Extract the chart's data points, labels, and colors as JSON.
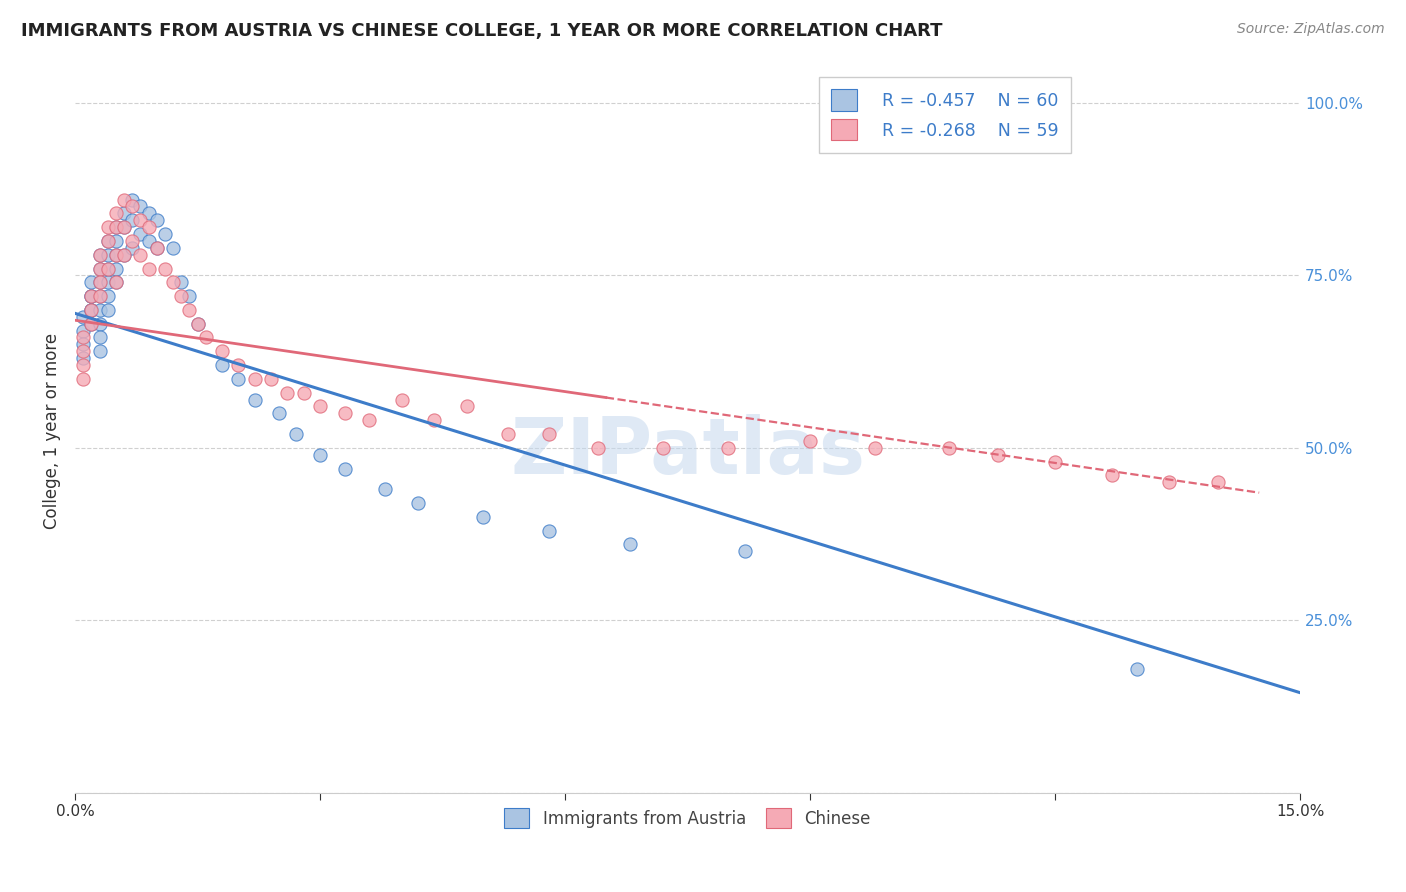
{
  "title": "IMMIGRANTS FROM AUSTRIA VS CHINESE COLLEGE, 1 YEAR OR MORE CORRELATION CHART",
  "source": "Source: ZipAtlas.com",
  "ylabel_label": "College, 1 year or more",
  "x_min": 0.0,
  "x_max": 0.15,
  "y_min": 0.0,
  "y_max": 1.05,
  "x_ticks": [
    0.0,
    0.03,
    0.06,
    0.09,
    0.12,
    0.15
  ],
  "x_tick_labels": [
    "0.0%",
    "",
    "",
    "",
    "",
    "15.0%"
  ],
  "y_ticks_right": [
    0.0,
    0.25,
    0.5,
    0.75,
    1.0
  ],
  "y_tick_labels_right": [
    "",
    "25.0%",
    "50.0%",
    "75.0%",
    "100.0%"
  ],
  "austria_color": "#aac4e2",
  "chinese_color": "#f5aab5",
  "austria_line_color": "#3d7cc9",
  "chinese_line_color": "#e06878",
  "legend_R_austria": "R = -0.457",
  "legend_N_austria": "N = 60",
  "legend_R_chinese": "R = -0.268",
  "legend_N_chinese": "N = 59",
  "legend_label_austria": "Immigrants from Austria",
  "legend_label_chinese": "Chinese",
  "watermark": "ZIPatlas",
  "austria_line_x0": 0.0,
  "austria_line_y0": 0.695,
  "austria_line_x1": 0.15,
  "austria_line_y1": 0.145,
  "chinese_line_x0": 0.0,
  "chinese_line_y0": 0.685,
  "chinese_line_solid_x1": 0.065,
  "chinese_line_x1": 0.145,
  "chinese_line_y1": 0.435,
  "austria_x": [
    0.001,
    0.001,
    0.001,
    0.001,
    0.002,
    0.002,
    0.002,
    0.002,
    0.002,
    0.002,
    0.003,
    0.003,
    0.003,
    0.003,
    0.003,
    0.003,
    0.003,
    0.003,
    0.004,
    0.004,
    0.004,
    0.004,
    0.004,
    0.004,
    0.005,
    0.005,
    0.005,
    0.005,
    0.005,
    0.006,
    0.006,
    0.006,
    0.007,
    0.007,
    0.007,
    0.008,
    0.008,
    0.009,
    0.009,
    0.01,
    0.01,
    0.011,
    0.012,
    0.013,
    0.014,
    0.015,
    0.018,
    0.02,
    0.022,
    0.025,
    0.027,
    0.03,
    0.033,
    0.038,
    0.042,
    0.05,
    0.058,
    0.068,
    0.082,
    0.13
  ],
  "austria_y": [
    0.69,
    0.67,
    0.65,
    0.63,
    0.74,
    0.72,
    0.7,
    0.68,
    0.72,
    0.7,
    0.78,
    0.76,
    0.74,
    0.72,
    0.7,
    0.68,
    0.66,
    0.64,
    0.8,
    0.78,
    0.76,
    0.74,
    0.72,
    0.7,
    0.82,
    0.8,
    0.78,
    0.76,
    0.74,
    0.84,
    0.82,
    0.78,
    0.86,
    0.83,
    0.79,
    0.85,
    0.81,
    0.84,
    0.8,
    0.83,
    0.79,
    0.81,
    0.79,
    0.74,
    0.72,
    0.68,
    0.62,
    0.6,
    0.57,
    0.55,
    0.52,
    0.49,
    0.47,
    0.44,
    0.42,
    0.4,
    0.38,
    0.36,
    0.35,
    0.18
  ],
  "chinese_x": [
    0.001,
    0.001,
    0.001,
    0.001,
    0.002,
    0.002,
    0.002,
    0.003,
    0.003,
    0.003,
    0.003,
    0.004,
    0.004,
    0.004,
    0.005,
    0.005,
    0.005,
    0.005,
    0.006,
    0.006,
    0.006,
    0.007,
    0.007,
    0.008,
    0.008,
    0.009,
    0.009,
    0.01,
    0.011,
    0.012,
    0.013,
    0.014,
    0.015,
    0.016,
    0.018,
    0.02,
    0.022,
    0.024,
    0.026,
    0.028,
    0.03,
    0.033,
    0.036,
    0.04,
    0.044,
    0.048,
    0.053,
    0.058,
    0.064,
    0.072,
    0.08,
    0.09,
    0.098,
    0.107,
    0.113,
    0.12,
    0.127,
    0.134,
    0.14
  ],
  "chinese_y": [
    0.66,
    0.64,
    0.62,
    0.6,
    0.72,
    0.7,
    0.68,
    0.78,
    0.76,
    0.74,
    0.72,
    0.82,
    0.8,
    0.76,
    0.84,
    0.82,
    0.78,
    0.74,
    0.86,
    0.82,
    0.78,
    0.85,
    0.8,
    0.83,
    0.78,
    0.82,
    0.76,
    0.79,
    0.76,
    0.74,
    0.72,
    0.7,
    0.68,
    0.66,
    0.64,
    0.62,
    0.6,
    0.6,
    0.58,
    0.58,
    0.56,
    0.55,
    0.54,
    0.57,
    0.54,
    0.56,
    0.52,
    0.52,
    0.5,
    0.5,
    0.5,
    0.51,
    0.5,
    0.5,
    0.49,
    0.48,
    0.46,
    0.45,
    0.45
  ]
}
